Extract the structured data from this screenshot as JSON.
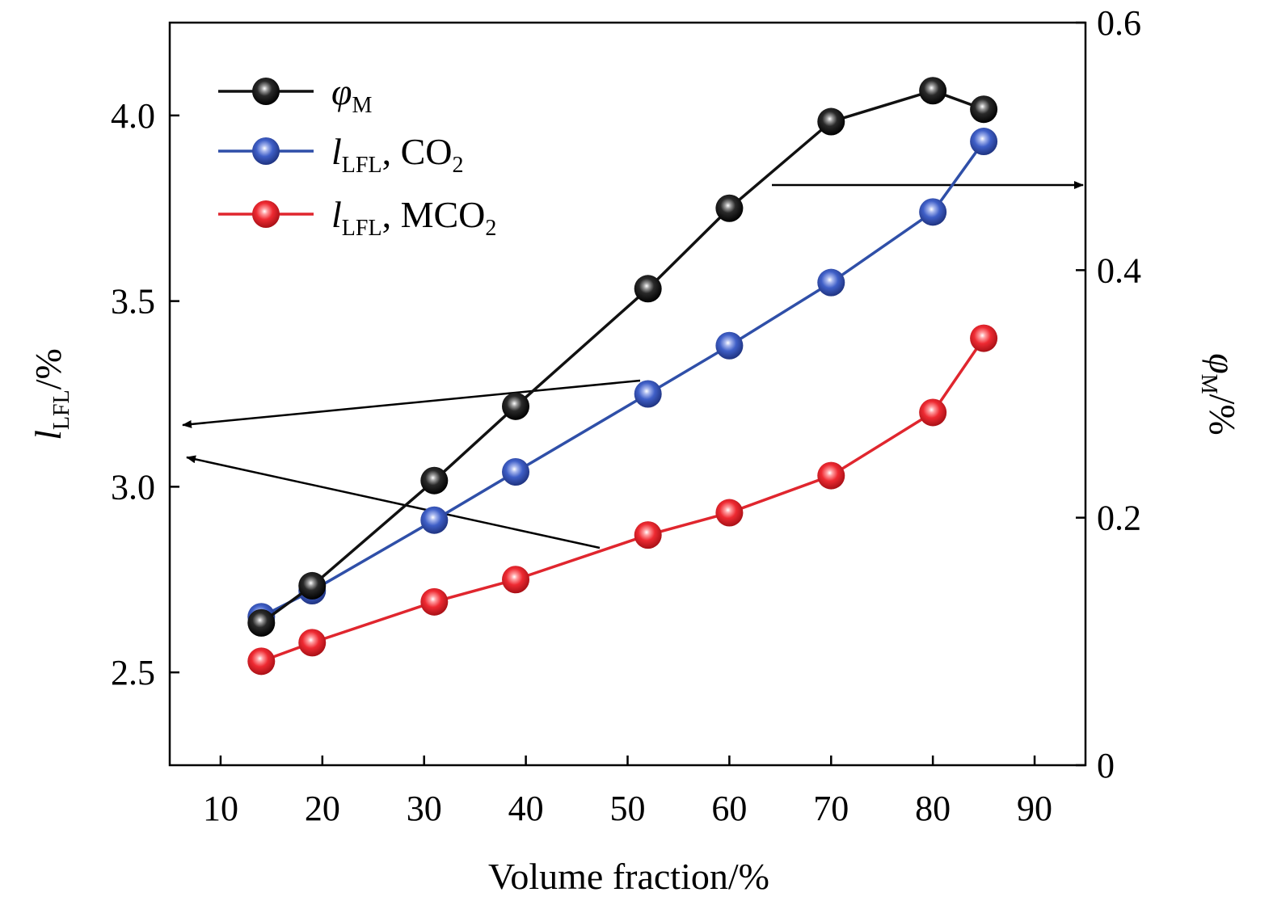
{
  "chart_data": {
    "type": "line",
    "xlabel": "Volume fraction/%",
    "ylabel_left": "l_LFL/%",
    "ylabel_right": "φ_M/%",
    "xlim": [
      5,
      95
    ],
    "ylim_left": [
      2.25,
      4.25
    ],
    "ylim_right": [
      0,
      0.6
    ],
    "x_ticks": [
      10,
      20,
      30,
      40,
      50,
      60,
      70,
      80,
      90
    ],
    "y_left_ticks": [
      "2.5",
      "3.0",
      "3.5",
      "4.0"
    ],
    "y_right_ticks": [
      "0",
      "0.2",
      "0.4",
      "0.6"
    ],
    "legend_position": "top-left",
    "series": [
      {
        "name": "φ_M",
        "name_main": "φ",
        "name_sub": "M",
        "name_rest": "",
        "axis": "right",
        "color": "#111111",
        "x": [
          14,
          19,
          31,
          39,
          52,
          60,
          70,
          80,
          85
        ],
        "y": [
          0.115,
          0.145,
          0.23,
          0.29,
          0.385,
          0.45,
          0.52,
          0.545,
          0.53
        ]
      },
      {
        "name": "l_LFL, CO2",
        "name_main": "l",
        "name_sub": "LFL",
        "name_rest": ", CO",
        "name_rest_sub": "2",
        "axis": "left",
        "color": "#2f4fa8",
        "x": [
          14,
          19,
          31,
          39,
          52,
          60,
          70,
          80,
          85
        ],
        "y": [
          2.65,
          2.72,
          2.91,
          3.04,
          3.25,
          3.38,
          3.55,
          3.74,
          3.93
        ]
      },
      {
        "name": "l_LFL, MCO2",
        "name_main": "l",
        "name_sub": "LFL",
        "name_rest": ", MCO",
        "name_rest_sub": "2",
        "axis": "left",
        "color": "#e0262e",
        "x": [
          14,
          19,
          31,
          39,
          52,
          60,
          70,
          80,
          85
        ],
        "y": [
          2.53,
          2.58,
          2.69,
          2.75,
          2.87,
          2.93,
          3.03,
          3.2,
          3.4
        ]
      }
    ]
  }
}
